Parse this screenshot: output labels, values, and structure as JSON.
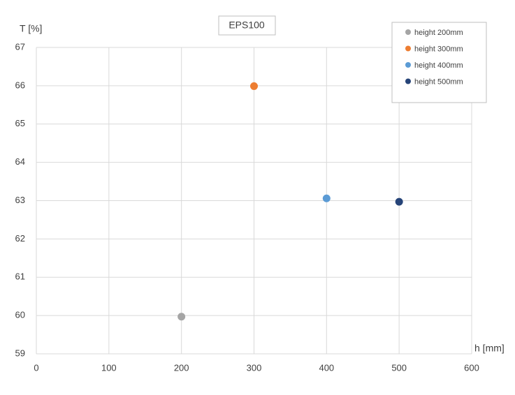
{
  "chart_data": {
    "type": "scatter",
    "title": "EPS100",
    "x_label": "h [mm]",
    "y_label": "T [%]",
    "xlim": [
      0,
      600
    ],
    "xticks": [
      0,
      100,
      200,
      300,
      400,
      500,
      600
    ],
    "ylim": [
      59,
      67
    ],
    "yticks": [
      59,
      60,
      61,
      62,
      63,
      64,
      65,
      66,
      67
    ],
    "grid": true,
    "legend": "top-right",
    "series": [
      {
        "name": "height 200mm",
        "color": "#a5a5a5",
        "x": [
          200
        ],
        "values": [
          59.97
        ]
      },
      {
        "name": "height 300mm",
        "color": "#ed7d31",
        "x": [
          300
        ],
        "values": [
          65.99
        ]
      },
      {
        "name": "height 400mm",
        "color": "#5b9bd5",
        "x": [
          400
        ],
        "values": [
          63.06
        ]
      },
      {
        "name": "height 500mm",
        "color": "#264478",
        "x": [
          500
        ],
        "values": [
          62.97
        ]
      }
    ]
  }
}
